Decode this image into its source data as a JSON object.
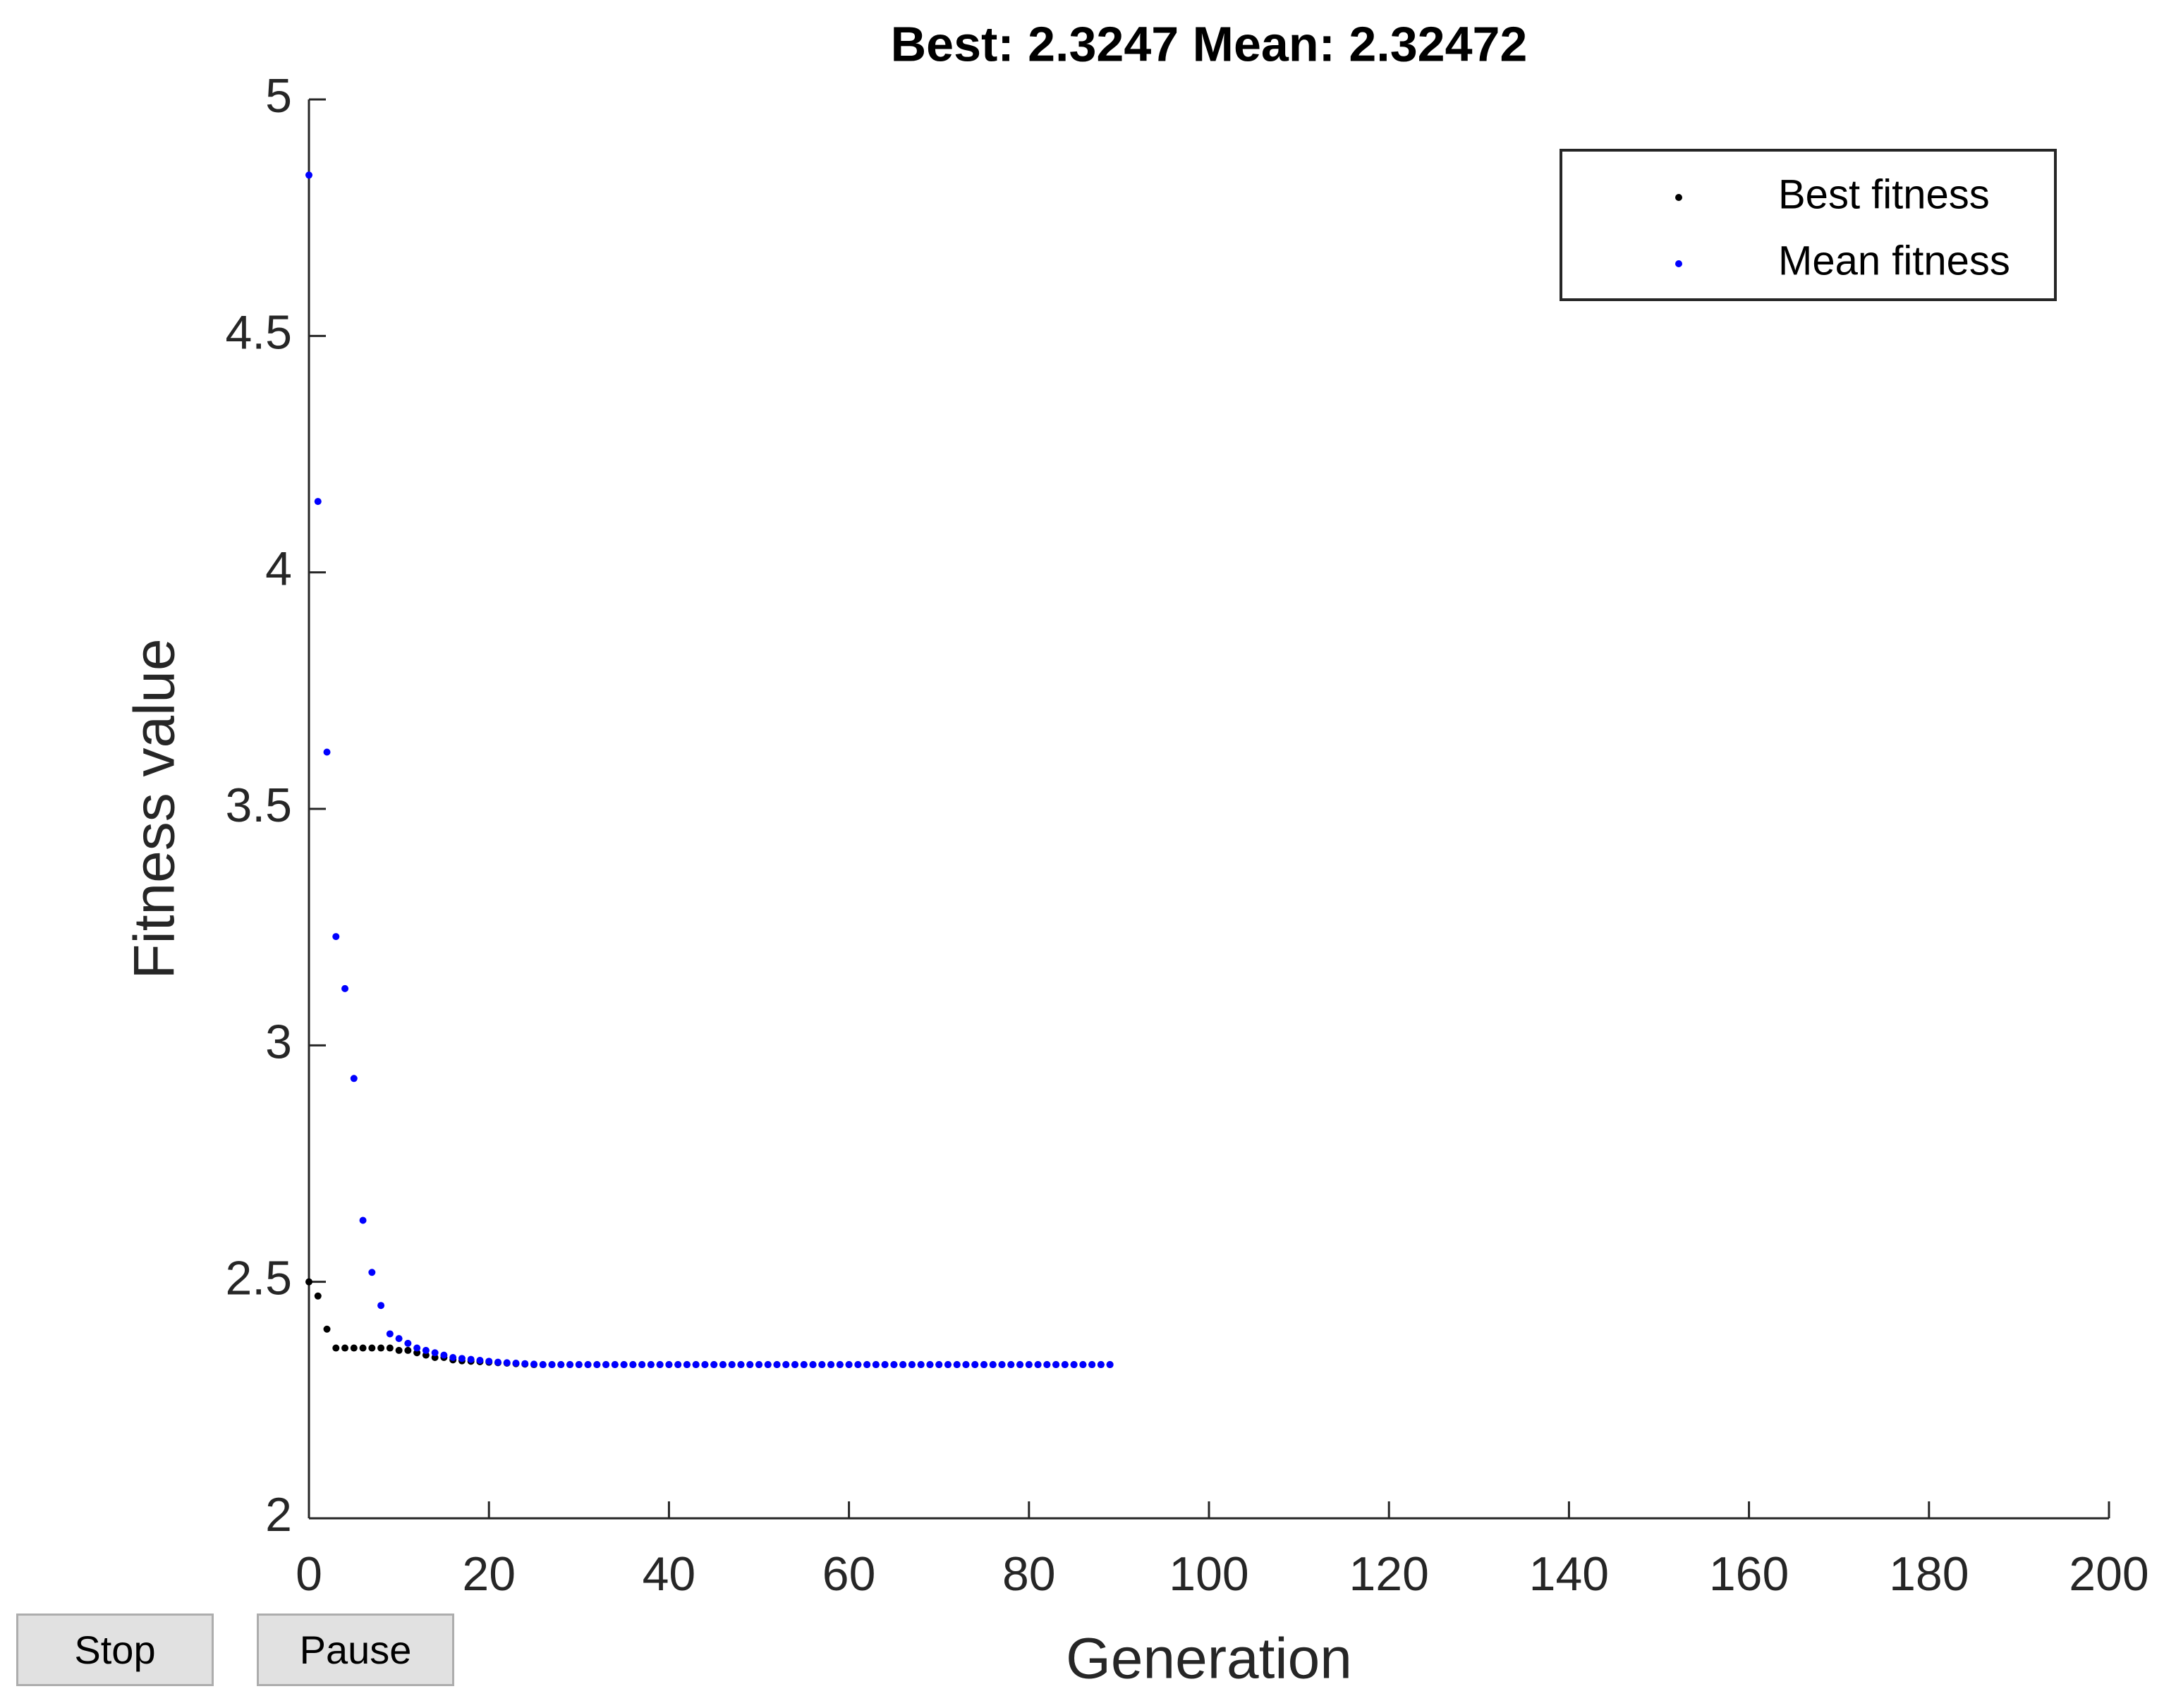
{
  "chart_data": {
    "type": "scatter",
    "title": "Best: 2.3247 Mean: 2.32472",
    "x_label": "Generation",
    "y_label": "Fitness value",
    "x": [
      0,
      1,
      2,
      3,
      4,
      5,
      6,
      7,
      8,
      9,
      10,
      11,
      12,
      13,
      14,
      15,
      16,
      17,
      18,
      19,
      20,
      21,
      22,
      23,
      24,
      25,
      26,
      27,
      28,
      29,
      30,
      31,
      32,
      33,
      34,
      35,
      36,
      37,
      38,
      39,
      40,
      41,
      42,
      43,
      44,
      45,
      46,
      47,
      48,
      49,
      50,
      51,
      52,
      53,
      54,
      55,
      56,
      57,
      58,
      59,
      60,
      61,
      62,
      63,
      64,
      65,
      66,
      67,
      68,
      69,
      70,
      71,
      72,
      73,
      74,
      75,
      76,
      77,
      78,
      79,
      80,
      81,
      82,
      83,
      84,
      85,
      86,
      87,
      88,
      89
    ],
    "series": [
      {
        "name": "Best fitness",
        "color": "#000000",
        "values": [
          2.5,
          2.47,
          2.4,
          2.36,
          2.36,
          2.36,
          2.36,
          2.36,
          2.36,
          2.36,
          2.355,
          2.355,
          2.35,
          2.345,
          2.34,
          2.34,
          2.335,
          2.333,
          2.332,
          2.331,
          2.33,
          2.329,
          2.328,
          2.327,
          2.326,
          2.325,
          2.325,
          2.325,
          2.325,
          2.325,
          2.325,
          2.325,
          2.325,
          2.325,
          2.325,
          2.325,
          2.325,
          2.325,
          2.325,
          2.325,
          2.325,
          2.325,
          2.325,
          2.325,
          2.325,
          2.325,
          2.325,
          2.325,
          2.325,
          2.325,
          2.325,
          2.325,
          2.325,
          2.325,
          2.325,
          2.325,
          2.325,
          2.325,
          2.325,
          2.325,
          2.325,
          2.325,
          2.325,
          2.325,
          2.325,
          2.325,
          2.325,
          2.325,
          2.325,
          2.325,
          2.325,
          2.325,
          2.325,
          2.325,
          2.325,
          2.325,
          2.325,
          2.325,
          2.325,
          2.325,
          2.325,
          2.325,
          2.325,
          2.325,
          2.325,
          2.325,
          2.325,
          2.325,
          2.325,
          2.325
        ]
      },
      {
        "name": "Mean fitness",
        "color": "#0000ff",
        "values": [
          4.84,
          4.15,
          3.62,
          3.23,
          3.12,
          2.93,
          2.63,
          2.52,
          2.45,
          2.39,
          2.38,
          2.37,
          2.36,
          2.355,
          2.35,
          2.345,
          2.34,
          2.338,
          2.336,
          2.334,
          2.332,
          2.33,
          2.329,
          2.328,
          2.327,
          2.326,
          2.325,
          2.325,
          2.325,
          2.325,
          2.325,
          2.325,
          2.325,
          2.325,
          2.325,
          2.325,
          2.325,
          2.325,
          2.325,
          2.325,
          2.325,
          2.325,
          2.325,
          2.325,
          2.325,
          2.325,
          2.325,
          2.325,
          2.325,
          2.325,
          2.325,
          2.325,
          2.325,
          2.325,
          2.325,
          2.325,
          2.325,
          2.325,
          2.325,
          2.325,
          2.325,
          2.325,
          2.325,
          2.325,
          2.325,
          2.325,
          2.325,
          2.325,
          2.325,
          2.325,
          2.325,
          2.325,
          2.325,
          2.325,
          2.325,
          2.325,
          2.325,
          2.325,
          2.325,
          2.325,
          2.325,
          2.325,
          2.325,
          2.325,
          2.325,
          2.325,
          2.325,
          2.325,
          2.325,
          2.325
        ]
      }
    ],
    "xlim": [
      0,
      200
    ],
    "xticks": [
      0,
      20,
      40,
      60,
      80,
      100,
      120,
      140,
      160,
      180,
      200
    ],
    "ylim": [
      2,
      5
    ],
    "yticks": [
      2,
      2.5,
      3,
      3.5,
      4,
      4.5,
      5
    ],
    "grid": false,
    "legend": "top-right"
  },
  "buttons": [
    "Stop",
    "Pause"
  ]
}
